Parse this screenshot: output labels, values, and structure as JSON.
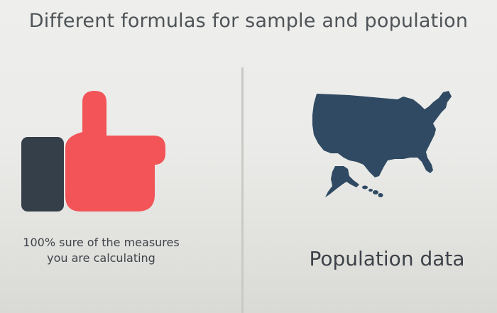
{
  "slide": {
    "title": "Different formulas for sample and population",
    "left": {
      "icon": "thumbs-up-icon",
      "caption_line1": "100% sure of the measures",
      "caption_line2": "you are calculating",
      "colors": {
        "thumb": "#f25457",
        "cuff": "#353f4a"
      }
    },
    "right": {
      "icon": "usa-map-icon",
      "label": "Population data",
      "colors": {
        "map": "#2f4a62"
      }
    }
  }
}
